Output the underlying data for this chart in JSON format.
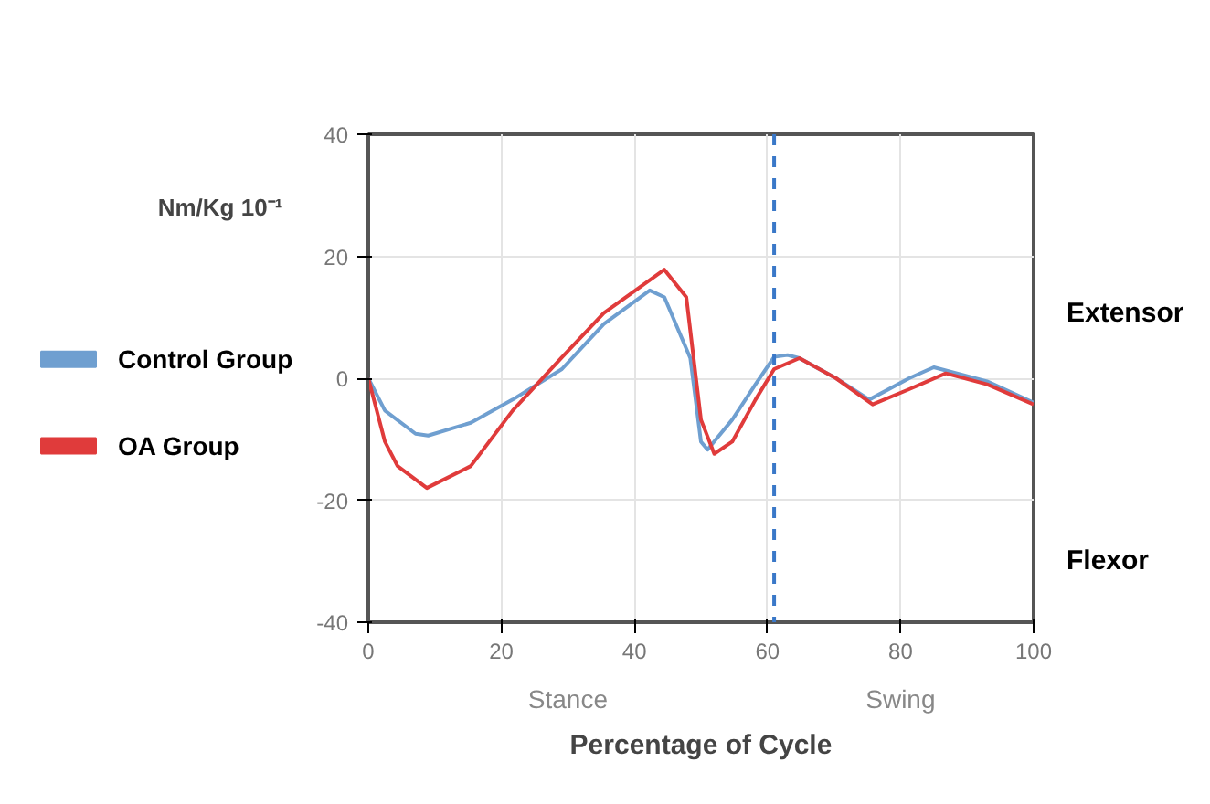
{
  "chart_data": {
    "type": "line",
    "xlabel": "Percentage of Cycle",
    "ylabel": "Nm/Kg 10⁻¹",
    "xlim": [
      0,
      100
    ],
    "xticks": [
      0,
      20,
      40,
      60,
      80,
      100
    ],
    "ylim": [
      -40,
      40
    ],
    "yticks": [
      -40,
      -20,
      0,
      20,
      40
    ],
    "grid": true,
    "legend": "left",
    "line_style": "solid",
    "series": [
      {
        "name": "Control Group",
        "color": "#6f9fd0",
        "x": [
          0,
          2.5,
          7.1,
          9,
          15.4,
          21.7,
          29.1,
          35.4,
          42.3,
          44.5,
          48.4,
          50,
          51,
          54.7,
          58.2,
          61,
          63,
          64.8,
          70.3,
          75.3,
          81.3,
          85,
          93,
          100
        ],
        "values": [
          0,
          -5.3,
          -9.1,
          -9.4,
          -7.3,
          -3.5,
          1.5,
          8.9,
          14.4,
          13.3,
          3.3,
          -10.4,
          -11.7,
          -6.8,
          -1,
          3.5,
          3.8,
          3.3,
          0,
          -3.5,
          0,
          1.8,
          -0.5,
          -4
        ]
      },
      {
        "name": "OA Group",
        "color": "#e03b3b",
        "x": [
          0,
          2.5,
          4.4,
          8.8,
          15.4,
          21.7,
          29,
          35.4,
          44.5,
          47.8,
          50,
          52,
          54.7,
          58.2,
          61,
          64.8,
          70.3,
          75.8,
          81.3,
          86.8,
          93,
          100
        ],
        "values": [
          0,
          -10.4,
          -14.4,
          -18,
          -14.4,
          -5.3,
          3.3,
          10.7,
          17.8,
          13.3,
          -6.8,
          -12.4,
          -10.4,
          -3.5,
          1.5,
          3.3,
          0,
          -4.3,
          -1.8,
          0.8,
          -1,
          -4.3
        ]
      }
    ],
    "ref_lines": [
      {
        "axis": "x",
        "value": 61,
        "color": "#3a78c8",
        "line_style": "dashed"
      }
    ],
    "annotations": [
      "Stance",
      "Swing",
      "Extensor",
      "Flexor"
    ]
  }
}
